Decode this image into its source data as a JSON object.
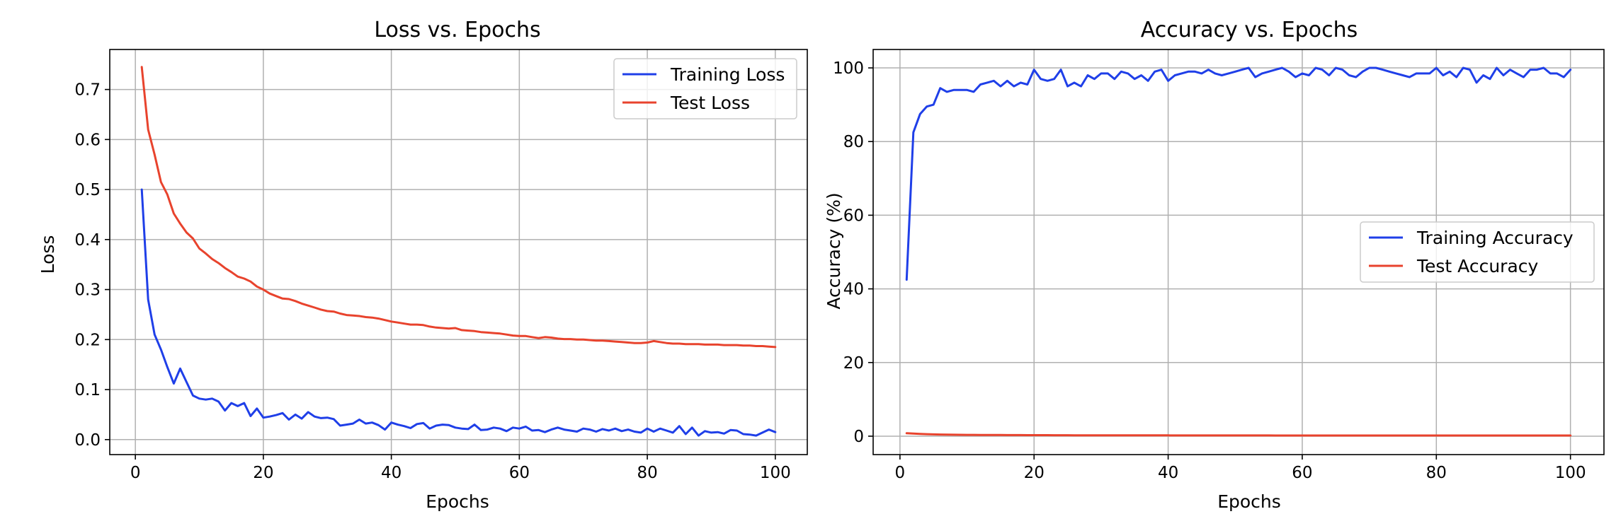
{
  "chart_data": [
    {
      "type": "line",
      "title": "Loss vs. Epochs",
      "xlabel": "Epochs",
      "ylabel": "Loss",
      "xlim": [
        -4,
        105
      ],
      "ylim": [
        -0.03,
        0.78
      ],
      "xticks": [
        0,
        20,
        40,
        60,
        80,
        100
      ],
      "yticks": [
        0.0,
        0.1,
        0.2,
        0.3,
        0.4,
        0.5,
        0.6,
        0.7
      ],
      "ytick_labels": [
        "0.0",
        "0.1",
        "0.2",
        "0.3",
        "0.4",
        "0.5",
        "0.6",
        "0.7"
      ],
      "grid": true,
      "legend_position": "top-right",
      "series": [
        {
          "name": "Training Loss",
          "color": "#1f3fe8",
          "x": [
            1,
            2,
            3,
            4,
            5,
            6,
            7,
            8,
            9,
            10,
            11,
            12,
            13,
            14,
            15,
            16,
            17,
            18,
            19,
            20,
            21,
            22,
            23,
            24,
            25,
            26,
            27,
            28,
            29,
            30,
            31,
            32,
            33,
            34,
            35,
            36,
            37,
            38,
            39,
            40,
            41,
            42,
            43,
            44,
            45,
            46,
            47,
            48,
            49,
            50,
            51,
            52,
            53,
            54,
            55,
            56,
            57,
            58,
            59,
            60,
            61,
            62,
            63,
            64,
            65,
            66,
            67,
            68,
            69,
            70,
            71,
            72,
            73,
            74,
            75,
            76,
            77,
            78,
            79,
            80,
            81,
            82,
            83,
            84,
            85,
            86,
            87,
            88,
            89,
            90,
            91,
            92,
            93,
            94,
            95,
            96,
            97,
            98,
            99,
            100
          ],
          "y": [
            0.5,
            0.28,
            0.21,
            0.18,
            0.145,
            0.112,
            0.142,
            0.115,
            0.088,
            0.082,
            0.08,
            0.082,
            0.076,
            0.058,
            0.073,
            0.067,
            0.073,
            0.047,
            0.062,
            0.044,
            0.046,
            0.049,
            0.053,
            0.04,
            0.05,
            0.042,
            0.055,
            0.046,
            0.043,
            0.044,
            0.041,
            0.028,
            0.03,
            0.032,
            0.04,
            0.032,
            0.034,
            0.029,
            0.02,
            0.034,
            0.03,
            0.027,
            0.023,
            0.031,
            0.033,
            0.022,
            0.028,
            0.03,
            0.029,
            0.024,
            0.022,
            0.021,
            0.03,
            0.019,
            0.02,
            0.024,
            0.022,
            0.017,
            0.024,
            0.022,
            0.026,
            0.018,
            0.019,
            0.015,
            0.02,
            0.024,
            0.02,
            0.018,
            0.016,
            0.022,
            0.02,
            0.016,
            0.021,
            0.018,
            0.022,
            0.017,
            0.02,
            0.016,
            0.014,
            0.022,
            0.016,
            0.022,
            0.018,
            0.014,
            0.027,
            0.011,
            0.024,
            0.008,
            0.017,
            0.014,
            0.015,
            0.012,
            0.019,
            0.018,
            0.011,
            0.01,
            0.008,
            0.014,
            0.02,
            0.015
          ]
        },
        {
          "name": "Test Loss",
          "color": "#e8432d",
          "x": [
            1,
            2,
            3,
            4,
            5,
            6,
            7,
            8,
            9,
            10,
            11,
            12,
            13,
            14,
            15,
            16,
            17,
            18,
            19,
            20,
            21,
            22,
            23,
            24,
            25,
            26,
            27,
            28,
            29,
            30,
            31,
            32,
            33,
            34,
            35,
            36,
            37,
            38,
            39,
            40,
            41,
            42,
            43,
            44,
            45,
            46,
            47,
            48,
            49,
            50,
            51,
            52,
            53,
            54,
            55,
            56,
            57,
            58,
            59,
            60,
            61,
            62,
            63,
            64,
            65,
            66,
            67,
            68,
            69,
            70,
            71,
            72,
            73,
            74,
            75,
            76,
            77,
            78,
            79,
            80,
            81,
            82,
            83,
            84,
            85,
            86,
            87,
            88,
            89,
            90,
            91,
            92,
            93,
            94,
            95,
            96,
            97,
            98,
            99,
            100
          ],
          "y": [
            0.745,
            0.62,
            0.57,
            0.515,
            0.49,
            0.452,
            0.432,
            0.414,
            0.402,
            0.382,
            0.372,
            0.361,
            0.353,
            0.343,
            0.335,
            0.326,
            0.322,
            0.316,
            0.306,
            0.3,
            0.292,
            0.287,
            0.282,
            0.281,
            0.277,
            0.272,
            0.268,
            0.264,
            0.26,
            0.257,
            0.256,
            0.252,
            0.249,
            0.248,
            0.247,
            0.245,
            0.244,
            0.242,
            0.239,
            0.236,
            0.234,
            0.232,
            0.23,
            0.23,
            0.229,
            0.226,
            0.224,
            0.223,
            0.222,
            0.223,
            0.219,
            0.218,
            0.217,
            0.215,
            0.214,
            0.213,
            0.212,
            0.21,
            0.208,
            0.207,
            0.207,
            0.205,
            0.203,
            0.205,
            0.204,
            0.202,
            0.201,
            0.201,
            0.2,
            0.2,
            0.199,
            0.198,
            0.198,
            0.197,
            0.196,
            0.195,
            0.194,
            0.193,
            0.193,
            0.194,
            0.197,
            0.195,
            0.193,
            0.192,
            0.192,
            0.191,
            0.191,
            0.191,
            0.19,
            0.19,
            0.19,
            0.189,
            0.189,
            0.189,
            0.188,
            0.188,
            0.187,
            0.187,
            0.186,
            0.185
          ]
        }
      ]
    },
    {
      "type": "line",
      "title": "Accuracy vs. Epochs",
      "xlabel": "Epochs",
      "ylabel": "Accuracy (%)",
      "xlim": [
        -4,
        105
      ],
      "ylim": [
        -5,
        105
      ],
      "xticks": [
        0,
        20,
        40,
        60,
        80,
        100
      ],
      "yticks": [
        0,
        20,
        40,
        60,
        80,
        100
      ],
      "ytick_labels": [
        "0",
        "20",
        "40",
        "60",
        "80",
        "100"
      ],
      "grid": true,
      "legend_position": "center-right",
      "series": [
        {
          "name": "Training Accuracy",
          "color": "#1f3fe8",
          "x": [
            1,
            2,
            3,
            4,
            5,
            6,
            7,
            8,
            9,
            10,
            11,
            12,
            13,
            14,
            15,
            16,
            17,
            18,
            19,
            20,
            21,
            22,
            23,
            24,
            25,
            26,
            27,
            28,
            29,
            30,
            31,
            32,
            33,
            34,
            35,
            36,
            37,
            38,
            39,
            40,
            41,
            42,
            43,
            44,
            45,
            46,
            47,
            48,
            49,
            50,
            51,
            52,
            53,
            54,
            55,
            56,
            57,
            58,
            59,
            60,
            61,
            62,
            63,
            64,
            65,
            66,
            67,
            68,
            69,
            70,
            71,
            72,
            73,
            74,
            75,
            76,
            77,
            78,
            79,
            80,
            81,
            82,
            83,
            84,
            85,
            86,
            87,
            88,
            89,
            90,
            91,
            92,
            93,
            94,
            95,
            96,
            97,
            98,
            99,
            100
          ],
          "y": [
            42.5,
            82.5,
            87.5,
            89.5,
            90,
            94.5,
            93.5,
            94,
            94,
            94,
            93.5,
            95.5,
            96,
            96.5,
            95,
            96.5,
            95,
            96,
            95.5,
            99.5,
            97,
            96.5,
            97,
            99.5,
            95,
            96,
            95,
            98,
            97,
            98.5,
            98.5,
            97,
            99,
            98.5,
            97,
            98,
            96.5,
            99,
            99.5,
            96.5,
            98,
            98.5,
            99,
            99,
            98.5,
            99.5,
            98.5,
            98,
            98.5,
            99,
            99.5,
            100,
            97.5,
            98.5,
            99,
            99.5,
            100,
            99,
            97.5,
            98.5,
            98,
            100,
            99.5,
            98,
            100,
            99.5,
            98,
            97.5,
            99,
            100,
            100,
            99.5,
            99,
            98.5,
            98,
            97.5,
            98.5,
            98.5,
            98.5,
            100,
            98,
            99,
            97.5,
            100,
            99.5,
            96,
            98,
            97,
            100,
            98,
            99.5,
            98.5,
            97.5,
            99.5,
            99.5,
            100,
            98.5,
            98.5,
            97.5,
            99.5
          ]
        },
        {
          "name": "Test Accuracy",
          "color": "#e8432d",
          "x": [
            1,
            2,
            3,
            4,
            5,
            6,
            7,
            8,
            9,
            10,
            11,
            12,
            13,
            14,
            15,
            16,
            17,
            18,
            19,
            20,
            21,
            22,
            23,
            24,
            25,
            26,
            27,
            28,
            29,
            30,
            31,
            32,
            33,
            34,
            35,
            36,
            37,
            38,
            39,
            40,
            41,
            42,
            43,
            44,
            45,
            46,
            47,
            48,
            49,
            50,
            51,
            52,
            53,
            54,
            55,
            56,
            57,
            58,
            59,
            60,
            61,
            62,
            63,
            64,
            65,
            66,
            67,
            68,
            69,
            70,
            71,
            72,
            73,
            74,
            75,
            76,
            77,
            78,
            79,
            80,
            81,
            82,
            83,
            84,
            85,
            86,
            87,
            88,
            89,
            90,
            91,
            92,
            93,
            94,
            95,
            96,
            97,
            98,
            99,
            100
          ],
          "y": [
            0.8,
            0.7,
            0.6,
            0.55,
            0.5,
            0.45,
            0.42,
            0.4,
            0.38,
            0.36,
            0.35,
            0.34,
            0.33,
            0.32,
            0.31,
            0.3,
            0.3,
            0.29,
            0.28,
            0.28,
            0.27,
            0.27,
            0.26,
            0.26,
            0.26,
            0.25,
            0.25,
            0.25,
            0.24,
            0.24,
            0.24,
            0.23,
            0.23,
            0.23,
            0.23,
            0.22,
            0.22,
            0.22,
            0.22,
            0.22,
            0.21,
            0.21,
            0.21,
            0.21,
            0.21,
            0.21,
            0.2,
            0.2,
            0.2,
            0.2,
            0.2,
            0.2,
            0.2,
            0.2,
            0.2,
            0.19,
            0.19,
            0.19,
            0.19,
            0.19,
            0.19,
            0.19,
            0.19,
            0.19,
            0.19,
            0.19,
            0.19,
            0.19,
            0.19,
            0.19,
            0.19,
            0.19,
            0.19,
            0.19,
            0.19,
            0.19,
            0.19,
            0.19,
            0.19,
            0.19,
            0.19,
            0.19,
            0.19,
            0.19,
            0.19,
            0.19,
            0.19,
            0.19,
            0.19,
            0.19,
            0.19,
            0.19,
            0.19,
            0.19,
            0.19,
            0.19,
            0.19,
            0.19,
            0.19,
            0.19
          ]
        }
      ]
    }
  ]
}
